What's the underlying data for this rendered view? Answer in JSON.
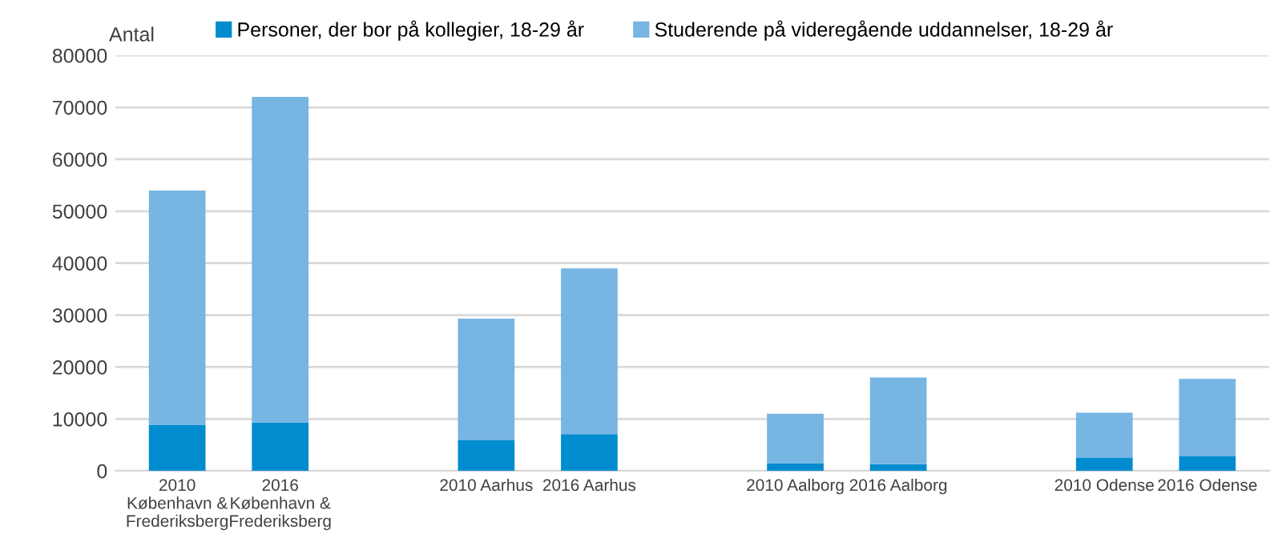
{
  "chart_data": {
    "type": "bar",
    "stacked": true,
    "ylabel": "Antal",
    "categories": [
      "2010\nKøbenhavn &\nFrederiksberg",
      "2016\nKøbenhavn &\nFrederiksberg",
      null,
      "2010 Aarhus",
      "2016 Aarhus",
      null,
      "2010 Aalborg",
      "2016 Aalborg",
      null,
      "2010 Odense",
      "2016 Odense"
    ],
    "series": [
      {
        "name": "Personer, der bor på kollegier, 18-29 år",
        "color": "#008ccf",
        "values": [
          8900,
          9300,
          null,
          5900,
          7100,
          null,
          1500,
          1300,
          null,
          2500,
          2800
        ]
      },
      {
        "name": "Studerende på videregående uddannelser, 18-29 år",
        "color": "#77b5e3",
        "values": [
          45100,
          62700,
          null,
          23400,
          31900,
          null,
          9500,
          16700,
          null,
          8700,
          14900
        ]
      }
    ],
    "ylim": [
      0,
      80000
    ],
    "yticks": [
      0,
      10000,
      20000,
      30000,
      40000,
      50000,
      60000,
      70000,
      80000
    ],
    "grid": "y",
    "legend": "top"
  }
}
